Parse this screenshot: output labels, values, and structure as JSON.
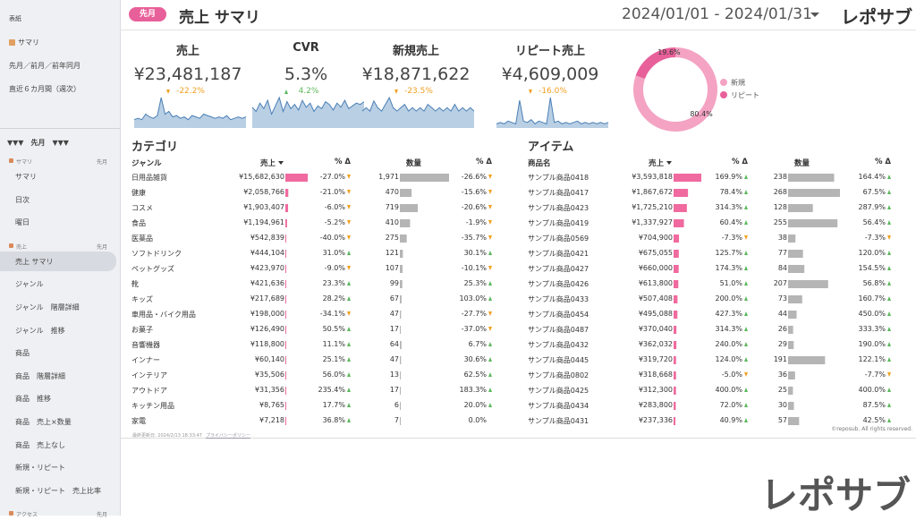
{
  "sidebar": {
    "top": [
      "表紙",
      "サマリ",
      "先月／前月／前年同月",
      "直近６カ月間（週次）"
    ],
    "divider": "▼▼▼　先月　▼▼▼",
    "sections": [
      {
        "title": "サマリ",
        "period": "先月",
        "items": [
          "サマリ",
          "日次",
          "曜日"
        ]
      },
      {
        "title": "売上",
        "period": "先月",
        "items": [
          "売上 サマリ",
          "ジャンル",
          "ジャンル　階層詳細",
          "ジャンル　推移",
          "商品",
          "商品　階層詳細",
          "商品　推移",
          "商品　売上×数量",
          "商品　売上なし",
          "新規・リピート",
          "新規・リピート　売上比率"
        ],
        "active": 0
      },
      {
        "title": "アクセス",
        "period": "先月",
        "items": []
      }
    ]
  },
  "header": {
    "badge": "先月",
    "title": "売上 サマリ",
    "date_range": "2024/01/01 - 2024/01/31",
    "logo": "レポサブ"
  },
  "kpis": [
    {
      "label": "売上",
      "value": "¥23,481,187",
      "change": "-22.2%",
      "spark": [
        6,
        7,
        6,
        10,
        8,
        7,
        9,
        22,
        10,
        12,
        8,
        9,
        7,
        8,
        6,
        9,
        8,
        7,
        10,
        9,
        8,
        7,
        8,
        7,
        9,
        6,
        7,
        8,
        7,
        8
      ]
    },
    {
      "label": "CVR",
      "value": "5.3%",
      "change": "4.2%",
      "spark": [
        15,
        12,
        18,
        14,
        20,
        10,
        16,
        22,
        12,
        19,
        14,
        17,
        13,
        20,
        15,
        18,
        12,
        16,
        14,
        19,
        17,
        13,
        18,
        15,
        20,
        14,
        16,
        18,
        17,
        19
      ]
    },
    {
      "label": "新規売上",
      "value": "¥18,871,622",
      "change": "-23.5%",
      "spark": [
        5,
        6,
        5,
        8,
        6,
        5,
        7,
        9,
        6,
        5,
        6,
        7,
        5,
        6,
        5,
        6,
        5,
        7,
        6,
        5,
        6,
        5,
        6,
        5,
        7,
        5,
        6,
        5,
        6,
        5
      ]
    },
    {
      "label": "リピート売上",
      "value": "¥4,609,009",
      "change": "-16.0%",
      "spark": [
        3,
        4,
        3,
        5,
        4,
        3,
        20,
        5,
        4,
        6,
        3,
        5,
        4,
        3,
        22,
        4,
        5,
        3,
        4,
        3,
        4,
        5,
        3,
        4,
        3,
        4,
        3,
        4,
        3,
        4
      ]
    }
  ],
  "chart_data": {
    "type": "donut",
    "categories": [
      "新規",
      "リピート"
    ],
    "values": [
      80.4,
      19.6
    ],
    "value_labels": [
      "80.4%",
      "19.6%"
    ],
    "colors": [
      "#f4a3c3",
      "#e8609a"
    ]
  },
  "tables": [
    {
      "title": "カテゴリ",
      "headers": [
        "ジャンル",
        "売上",
        "% Δ",
        "数量",
        "% Δ"
      ],
      "rows": [
        {
          "name": "日用品雑貨",
          "sales": 15682630,
          "sales_label": "¥15,682,630",
          "sales_change": "-27.0%",
          "qty": 1971,
          "qty_label": "1,971",
          "qty_change": "-26.6%"
        },
        {
          "name": "健康",
          "sales": 2058766,
          "sales_label": "¥2,058,766",
          "sales_change": "-21.0%",
          "qty": 470,
          "qty_label": "470",
          "qty_change": "-15.6%"
        },
        {
          "name": "コスメ",
          "sales": 1903407,
          "sales_label": "¥1,903,407",
          "sales_change": "-6.0%",
          "qty": 719,
          "qty_label": "719",
          "qty_change": "-20.6%"
        },
        {
          "name": "食品",
          "sales": 1194961,
          "sales_label": "¥1,194,961",
          "sales_change": "-5.2%",
          "qty": 410,
          "qty_label": "410",
          "qty_change": "-1.9%"
        },
        {
          "name": "医薬品",
          "sales": 542839,
          "sales_label": "¥542,839",
          "sales_change": "-40.0%",
          "qty": 275,
          "qty_label": "275",
          "qty_change": "-35.7%"
        },
        {
          "name": "ソフトドリンク",
          "sales": 444104,
          "sales_label": "¥444,104",
          "sales_change": "31.0%",
          "qty": 121,
          "qty_label": "121",
          "qty_change": "30.1%"
        },
        {
          "name": "ペットグッズ",
          "sales": 423970,
          "sales_label": "¥423,970",
          "sales_change": "-9.0%",
          "qty": 107,
          "qty_label": "107",
          "qty_change": "-10.1%"
        },
        {
          "name": "靴",
          "sales": 421636,
          "sales_label": "¥421,636",
          "sales_change": "23.3%",
          "qty": 99,
          "qty_label": "99",
          "qty_change": "25.3%"
        },
        {
          "name": "キッズ",
          "sales": 217689,
          "sales_label": "¥217,689",
          "sales_change": "28.2%",
          "qty": 67,
          "qty_label": "67",
          "qty_change": "103.0%"
        },
        {
          "name": "車用品・バイク用品",
          "sales": 198000,
          "sales_label": "¥198,000",
          "sales_change": "-34.1%",
          "qty": 47,
          "qty_label": "47",
          "qty_change": "-27.7%"
        },
        {
          "name": "お菓子",
          "sales": 126490,
          "sales_label": "¥126,490",
          "sales_change": "50.5%",
          "qty": 17,
          "qty_label": "17",
          "qty_change": "-37.0%"
        },
        {
          "name": "音響機器",
          "sales": 118800,
          "sales_label": "¥118,800",
          "sales_change": "11.1%",
          "qty": 64,
          "qty_label": "64",
          "qty_change": "6.7%"
        },
        {
          "name": "インナー",
          "sales": 60140,
          "sales_label": "¥60,140",
          "sales_change": "25.1%",
          "qty": 47,
          "qty_label": "47",
          "qty_change": "30.6%"
        },
        {
          "name": "インテリア",
          "sales": 35506,
          "sales_label": "¥35,506",
          "sales_change": "56.0%",
          "qty": 13,
          "qty_label": "13",
          "qty_change": "62.5%"
        },
        {
          "name": "アウトドア",
          "sales": 31356,
          "sales_label": "¥31,356",
          "sales_change": "235.4%",
          "qty": 17,
          "qty_label": "17",
          "qty_change": "183.3%"
        },
        {
          "name": "キッチン用品",
          "sales": 8765,
          "sales_label": "¥8,765",
          "sales_change": "17.7%",
          "qty": 6,
          "qty_label": "6",
          "qty_change": "20.0%"
        },
        {
          "name": "家電",
          "sales": 7218,
          "sales_label": "¥7,218",
          "sales_change": "36.8%",
          "qty": 7,
          "qty_label": "7",
          "qty_change": "0.0%"
        }
      ]
    },
    {
      "title": "アイテム",
      "headers": [
        "商品名",
        "売上",
        "% Δ",
        "数量",
        "% Δ"
      ],
      "rows": [
        {
          "name": "サンプル商品0418",
          "sales": 3593818,
          "sales_label": "¥3,593,818",
          "sales_change": "169.9%",
          "qty": 238,
          "qty_label": "238",
          "qty_change": "164.4%"
        },
        {
          "name": "サンプル商品0417",
          "sales": 1867672,
          "sales_label": "¥1,867,672",
          "sales_change": "78.4%",
          "qty": 268,
          "qty_label": "268",
          "qty_change": "67.5%"
        },
        {
          "name": "サンプル商品0423",
          "sales": 1725210,
          "sales_label": "¥1,725,210",
          "sales_change": "314.3%",
          "qty": 128,
          "qty_label": "128",
          "qty_change": "287.9%"
        },
        {
          "name": "サンプル商品0419",
          "sales": 1337927,
          "sales_label": "¥1,337,927",
          "sales_change": "60.4%",
          "qty": 255,
          "qty_label": "255",
          "qty_change": "56.4%"
        },
        {
          "name": "サンプル商品0569",
          "sales": 704900,
          "sales_label": "¥704,900",
          "sales_change": "-7.3%",
          "qty": 38,
          "qty_label": "38",
          "qty_change": "-7.3%"
        },
        {
          "name": "サンプル商品0421",
          "sales": 675055,
          "sales_label": "¥675,055",
          "sales_change": "125.7%",
          "qty": 77,
          "qty_label": "77",
          "qty_change": "120.0%"
        },
        {
          "name": "サンプル商品0427",
          "sales": 660000,
          "sales_label": "¥660,000",
          "sales_change": "174.3%",
          "qty": 84,
          "qty_label": "84",
          "qty_change": "154.5%"
        },
        {
          "name": "サンプル商品0426",
          "sales": 613800,
          "sales_label": "¥613,800",
          "sales_change": "51.0%",
          "qty": 207,
          "qty_label": "207",
          "qty_change": "56.8%"
        },
        {
          "name": "サンプル商品0433",
          "sales": 507408,
          "sales_label": "¥507,408",
          "sales_change": "200.0%",
          "qty": 73,
          "qty_label": "73",
          "qty_change": "160.7%"
        },
        {
          "name": "サンプル商品0454",
          "sales": 495088,
          "sales_label": "¥495,088",
          "sales_change": "427.3%",
          "qty": 44,
          "qty_label": "44",
          "qty_change": "450.0%"
        },
        {
          "name": "サンプル商品0487",
          "sales": 370040,
          "sales_label": "¥370,040",
          "sales_change": "314.3%",
          "qty": 26,
          "qty_label": "26",
          "qty_change": "333.3%"
        },
        {
          "name": "サンプル商品0432",
          "sales": 362032,
          "sales_label": "¥362,032",
          "sales_change": "240.0%",
          "qty": 29,
          "qty_label": "29",
          "qty_change": "190.0%"
        },
        {
          "name": "サンプル商品0445",
          "sales": 319720,
          "sales_label": "¥319,720",
          "sales_change": "124.0%",
          "qty": 191,
          "qty_label": "191",
          "qty_change": "122.1%"
        },
        {
          "name": "サンプル商品0802",
          "sales": 318668,
          "sales_label": "¥318,668",
          "sales_change": "-5.0%",
          "qty": 36,
          "qty_label": "36",
          "qty_change": "-7.7%"
        },
        {
          "name": "サンプル商品0425",
          "sales": 312300,
          "sales_label": "¥312,300",
          "sales_change": "400.0%",
          "qty": 25,
          "qty_label": "25",
          "qty_change": "400.0%"
        },
        {
          "name": "サンプル商品0434",
          "sales": 283800,
          "sales_label": "¥283,800",
          "sales_change": "72.0%",
          "qty": 30,
          "qty_label": "30",
          "qty_change": "87.5%"
        },
        {
          "name": "サンプル商品0431",
          "sales": 237336,
          "sales_label": "¥237,336",
          "sales_change": "40.9%",
          "qty": 57,
          "qty_label": "57",
          "qty_change": "42.5%"
        }
      ]
    }
  ],
  "footer": {
    "updated": "最終更新日: 2024/2/13 18:33:47",
    "privacy": "プライバシーポリシー",
    "copyright": "©reposub. All rights reserved.",
    "brand": "レポサブ"
  }
}
